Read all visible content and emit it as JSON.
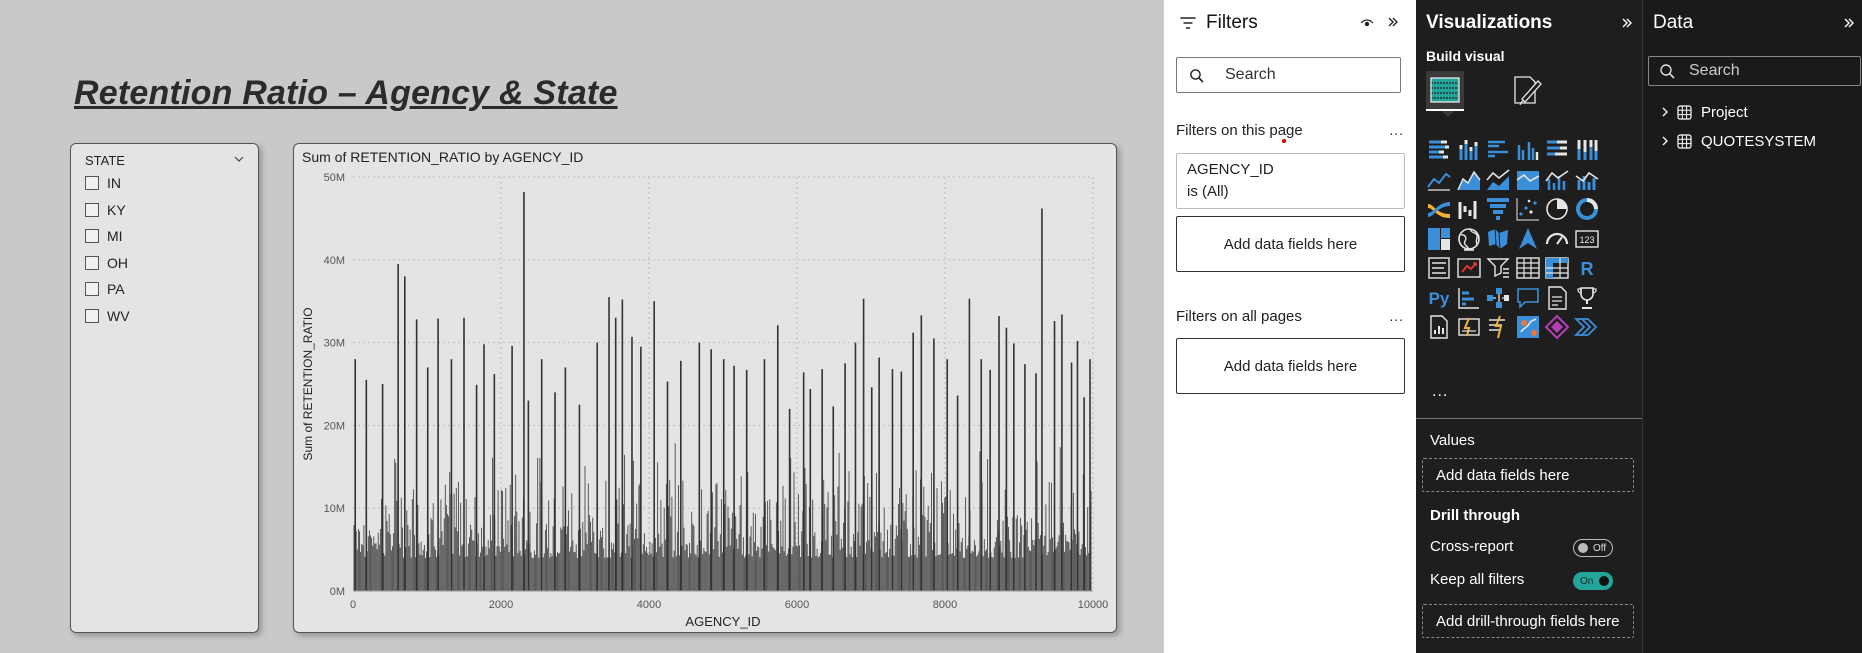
{
  "report": {
    "title": "Retention Ratio – Agency & State"
  },
  "slicer": {
    "title": "STATE",
    "items": [
      "IN",
      "KY",
      "MI",
      "OH",
      "PA",
      "WV"
    ]
  },
  "chart_data": {
    "type": "bar",
    "title": "Sum of RETENTION_RATIO by AGENCY_ID",
    "xlabel": "AGENCY_ID",
    "ylabel": "Sum of RETENTION_RATIO",
    "xlim": [
      0,
      10000
    ],
    "ylim": [
      0,
      50000000
    ],
    "x_ticks": [
      "0",
      "2000",
      "4000",
      "6000",
      "8000",
      "10000"
    ],
    "y_ticks": [
      "0M",
      "10M",
      "20M",
      "30M",
      "40M",
      "50M"
    ],
    "x_tick_values": [
      0,
      2000,
      4000,
      6000,
      8000,
      10000
    ],
    "y_tick_values": [
      0,
      10000000,
      20000000,
      30000000,
      40000000,
      50000000
    ],
    "grid": true,
    "bar_color": "#333333",
    "x": [
      30,
      180,
      400,
      610,
      700,
      860,
      1010,
      1150,
      1330,
      1500,
      1670,
      1770,
      1910,
      2150,
      2310,
      2370,
      2550,
      2730,
      2870,
      3060,
      3300,
      3460,
      3550,
      3640,
      3770,
      3890,
      4070,
      4250,
      4430,
      4680,
      4840,
      5010,
      5150,
      5320,
      5560,
      5740,
      5900,
      6090,
      6180,
      6340,
      6490,
      6650,
      6790,
      6900,
      7010,
      7110,
      7290,
      7410,
      7570,
      7680,
      7850,
      8030,
      8170,
      8330,
      8490,
      8610,
      8730,
      8830,
      8930,
      9080,
      9230,
      9310,
      9480,
      9580,
      9710,
      9790,
      9880,
      9960
    ],
    "values": [
      28000000,
      25500000,
      25000000,
      39500000,
      38000000,
      32800000,
      27000000,
      32900000,
      28000000,
      33000000,
      24900000,
      29800000,
      26200000,
      29600000,
      48200000,
      23000000,
      28000000,
      24000000,
      27000000,
      22500000,
      30000000,
      35500000,
      33000000,
      35200000,
      30700000,
      29500000,
      35000000,
      25300000,
      27800000,
      30000000,
      29200000,
      28000000,
      27200000,
      26700000,
      28000000,
      32100000,
      22000000,
      26400000,
      24400000,
      26800000,
      22300000,
      27500000,
      30000000,
      35300000,
      24600000,
      28200000,
      26800000,
      26500000,
      31200000,
      33300000,
      30500000,
      28000000,
      23600000,
      35300000,
      28000000,
      26700000,
      33200000,
      31800000,
      29900000,
      27400000,
      26300000,
      46200000,
      32600000,
      33400000,
      27600000,
      30200000,
      23400000,
      28000000
    ]
  },
  "filters": {
    "title": "Filters",
    "search_placeholder": "Search",
    "page_section": "Filters on this page",
    "page_more": "...",
    "card_field": "AGENCY_ID",
    "card_value": "is (All)",
    "add_fields_page": "Add data fields here",
    "all_section": "Filters on all pages",
    "all_more": "...",
    "add_fields_all": "Add data fields here"
  },
  "visualizations": {
    "title": "Visualizations",
    "build_label": "Build visual",
    "more": "...",
    "values_label": "Values",
    "values_drop": "Add data fields here",
    "drill_label": "Drill through",
    "cross_report_label": "Cross-report",
    "cross_report_toggle": "Off",
    "keep_filters_label": "Keep all filters",
    "keep_filters_toggle": "On",
    "drill_drop": "Add drill-through fields here",
    "icon_grid": [
      [
        "stacked-bar-icon",
        "stacked-column-icon",
        "clustered-bar-icon",
        "clustered-column-icon",
        "100-stacked-bar-icon",
        "100-stacked-column-icon"
      ],
      [
        "line-chart-icon",
        "area-chart-icon",
        "stacked-area-icon",
        "100-stacked-area-icon",
        "line-clustered-column-icon",
        "line-stacked-column-icon"
      ],
      [
        "ribbon-chart-icon",
        "waterfall-chart-icon",
        "funnel-chart-icon",
        "scatter-chart-icon",
        "pie-chart-icon",
        "donut-chart-icon"
      ],
      [
        "treemap-icon",
        "map-icon",
        "filled-map-icon",
        "azure-map-icon",
        "gauge-icon",
        "card-icon"
      ],
      [
        "multi-row-card-icon",
        "kpi-icon",
        "slicer-icon",
        "table-icon",
        "matrix-icon",
        "r-visual-icon"
      ],
      [
        "python-visual-icon",
        "key-influencers-icon",
        "decomposition-tree-icon",
        "qa-icon",
        "smart-narrative-icon",
        "metrics-icon"
      ],
      [
        "paginated-report-icon",
        "power-apps-icon",
        "power-automate-icon",
        "arcgis-icon",
        "powerapps-diamond-icon",
        "get-more-visuals-icon"
      ]
    ],
    "icon_grid_cells": [
      [
        "R",
        ""
      ],
      [
        "Py",
        "1"
      ]
    ],
    "r_text": "R",
    "py_text": "Py",
    "card_text": "123"
  },
  "data_pane": {
    "title": "Data",
    "search_placeholder": "Search",
    "tables": [
      "Project",
      "QUOTESYSTEM"
    ]
  },
  "colors": {
    "accent_teal": "#24a49b",
    "viz_blue": "#3b8fd9",
    "canvas_bg": "#c9c9c9"
  }
}
